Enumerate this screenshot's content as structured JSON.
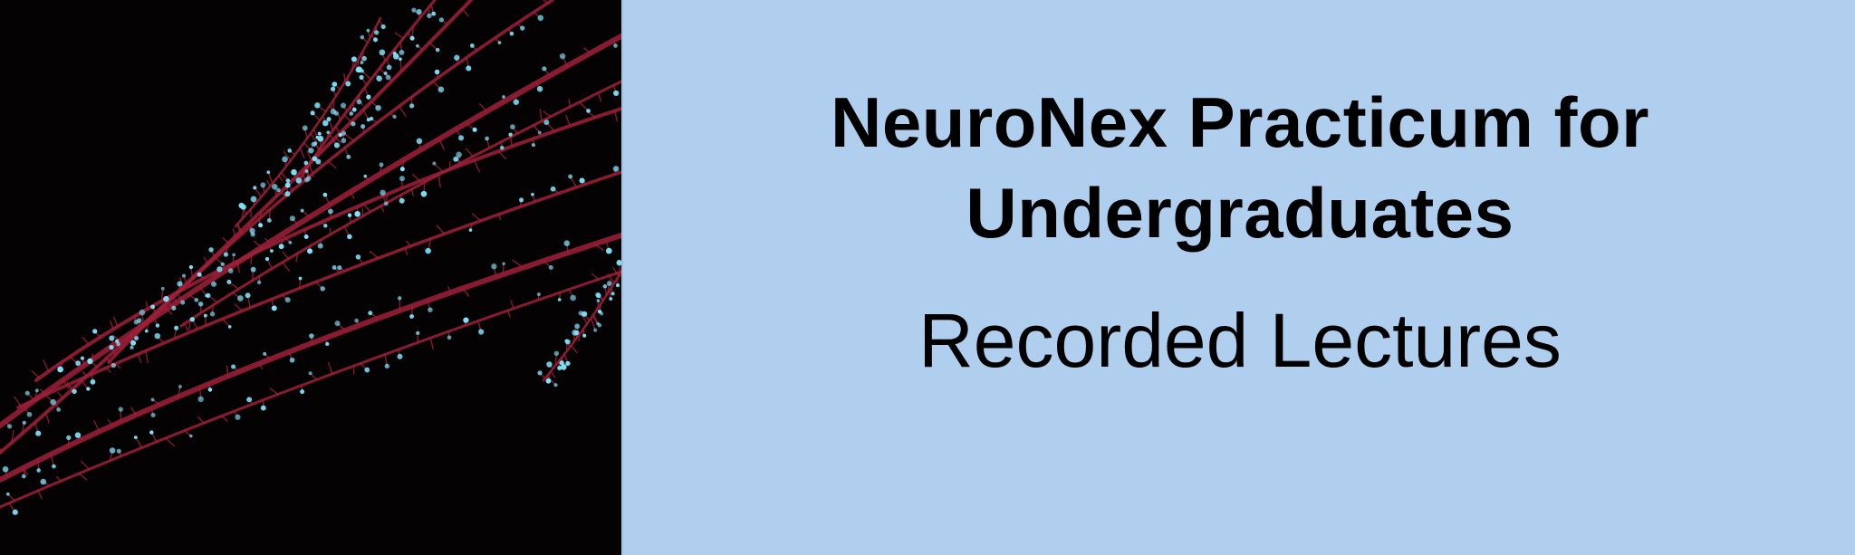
{
  "banner": {
    "title_line1": "NeuroNex Practicum for",
    "title_line2": "Undergraduates",
    "subtitle": "Recorded Lectures"
  },
  "image": {
    "subject": "neuron-dendrites-micrograph",
    "background_color": "#050203",
    "dendrite_color": "#a0203a",
    "spine_color": "#7fe6ff"
  },
  "colors": {
    "panel_background": "#b0cfee",
    "text": "#000000"
  }
}
